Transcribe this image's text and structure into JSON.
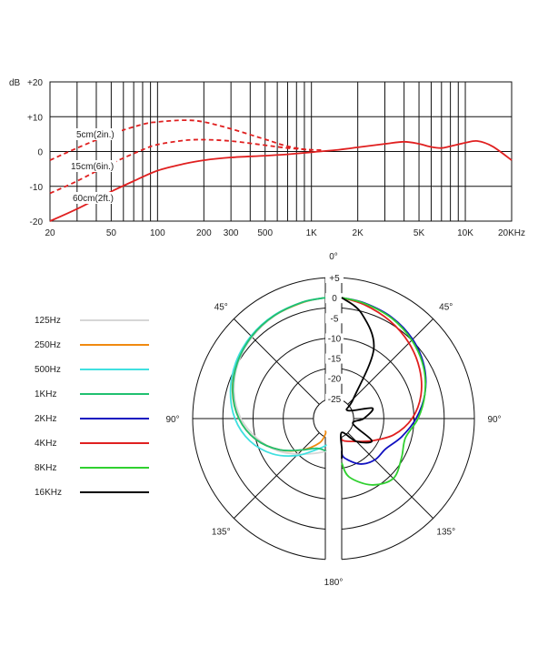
{
  "chart_data": [
    {
      "type": "line",
      "xscale": "log",
      "xlim": [
        20,
        20000
      ],
      "ylim": [
        -20,
        20
      ],
      "y_unit": "dB",
      "y_ticks": [
        "+20",
        "+10",
        "0",
        "-10",
        "-20"
      ],
      "y_tick_values": [
        20,
        10,
        0,
        -10,
        -20
      ],
      "x_ticks": [
        "20",
        "50",
        "100",
        "200",
        "300",
        "500",
        "1K",
        "2K",
        "5K",
        "10K",
        "20KHz"
      ],
      "x_tick_values": [
        20,
        50,
        100,
        200,
        300,
        500,
        1000,
        2000,
        5000,
        10000,
        20000
      ],
      "grid": true,
      "color": "#e02020",
      "series": [
        {
          "name": "5cm(2in.)",
          "style": "dashed",
          "x": [
            20,
            30,
            50,
            80,
            100,
            150,
            200,
            300,
            500,
            700,
            1000
          ],
          "y": [
            -2.5,
            1,
            5,
            7.8,
            8.5,
            9,
            8.5,
            6.5,
            3.5,
            1.5,
            0.3
          ]
        },
        {
          "name": "15cm(6in.)",
          "style": "dashed",
          "x": [
            20,
            30,
            50,
            80,
            100,
            150,
            200,
            300,
            500,
            700,
            1000,
            1200
          ],
          "y": [
            -12,
            -8.5,
            -3.5,
            0.5,
            2,
            3.2,
            3.4,
            3,
            1.8,
            1,
            0.5,
            0.4
          ]
        },
        {
          "name": "60cm(2ft.)",
          "style": "solid",
          "x": [
            20,
            30,
            50,
            70,
            100,
            150,
            200,
            300,
            500,
            700,
            1000,
            1500,
            2000,
            3000,
            4000,
            5000,
            6000,
            7000,
            8000,
            10000,
            12000,
            15000,
            20000
          ],
          "y": [
            -20,
            -16.5,
            -11.5,
            -8.5,
            -5.5,
            -3.5,
            -2.5,
            -1.7,
            -1.2,
            -0.8,
            -0.2,
            0.5,
            1.2,
            2.2,
            2.8,
            2.2,
            1.3,
            1,
            1.5,
            2.5,
            3,
            1.5,
            -2.5
          ]
        }
      ]
    },
    {
      "type": "polar",
      "r_ticks": [
        "+5",
        "0",
        "-5",
        "-10",
        "-15",
        "-20",
        "-25"
      ],
      "r_tick_values": [
        5,
        0,
        -5,
        -10,
        -15,
        -20,
        -25
      ],
      "rlim": [
        -30,
        5
      ],
      "angle_labels": [
        "0°",
        "45°",
        "90°",
        "135°",
        "180°",
        "135°",
        "90°",
        "45°"
      ],
      "series": [
        {
          "name": "125Hz",
          "color": "#d6d6d6",
          "theta": [
            0,
            15,
            30,
            45,
            60,
            75,
            90,
            105,
            120,
            135,
            150,
            165,
            180
          ],
          "r": [
            0,
            -0.2,
            -0.6,
            -1.4,
            -2.6,
            -4.4,
            -7,
            -10.5,
            -14,
            -17.5,
            -20,
            -21.5,
            -22
          ]
        },
        {
          "name": "250Hz",
          "color": "#f08a10",
          "theta": [
            0,
            15,
            30,
            45,
            60,
            75,
            90,
            105,
            120,
            135,
            150,
            165,
            175
          ],
          "r": [
            0,
            -0.2,
            -0.5,
            -1.2,
            -2.3,
            -4,
            -6.5,
            -10,
            -14.5,
            -19,
            -23,
            -26,
            -27
          ]
        },
        {
          "name": "500Hz",
          "color": "#40e0e0",
          "theta": [
            0,
            15,
            30,
            45,
            60,
            75,
            90,
            105,
            120,
            135,
            150,
            165,
            175
          ],
          "r": [
            0,
            -0.1,
            -0.4,
            -1,
            -2,
            -3.5,
            -5.5,
            -8.5,
            -12.5,
            -17,
            -21,
            -23,
            -23.5
          ]
        },
        {
          "name": "1KHz",
          "color": "#20c070",
          "theta": [
            0,
            15,
            30,
            45,
            60,
            75,
            90,
            105,
            120,
            135,
            150,
            165,
            180
          ],
          "r": [
            0,
            -0.1,
            -0.5,
            -1.2,
            -2.4,
            -4.1,
            -6.5,
            -10,
            -14.5,
            -19,
            -21.5,
            -21.8,
            -22
          ]
        },
        {
          "name": "2KHz",
          "color": "#1010c0",
          "theta": [
            0,
            15,
            30,
            45,
            60,
            75,
            90,
            105,
            120,
            135,
            150,
            165,
            180
          ],
          "r": [
            0,
            -0.3,
            -1,
            -2.2,
            -4,
            -6.5,
            -9.5,
            -12.5,
            -15,
            -15.5,
            -17,
            -20,
            -22
          ]
        },
        {
          "name": "4KHz",
          "color": "#e02020",
          "theta": [
            0,
            15,
            30,
            45,
            60,
            75,
            90,
            105,
            120,
            135,
            150,
            165,
            180
          ],
          "r": [
            0,
            -0.7,
            -2,
            -3.5,
            -5.3,
            -7.5,
            -10.5,
            -14.5,
            -19,
            -22,
            -23.5,
            -24.5,
            -25
          ]
        },
        {
          "name": "8KHz",
          "color": "#30d030",
          "theta": [
            0,
            15,
            30,
            45,
            60,
            75,
            90,
            105,
            120,
            135,
            150,
            165,
            180
          ],
          "r": [
            0,
            -0.4,
            -1.2,
            -2.5,
            -4.2,
            -6.5,
            -9,
            -11.5,
            -10.5,
            -9,
            -11,
            -15,
            -19
          ]
        },
        {
          "name": "16KHz",
          "color": "#000000",
          "theta": [
            0,
            15,
            30,
            45,
            60,
            75,
            90,
            105,
            120,
            135,
            150,
            165,
            180
          ],
          "r": [
            0,
            -3,
            -10,
            -23,
            -26,
            -20,
            -22.5,
            -25,
            -19,
            -22,
            -26,
            -22,
            -20
          ]
        }
      ]
    }
  ]
}
